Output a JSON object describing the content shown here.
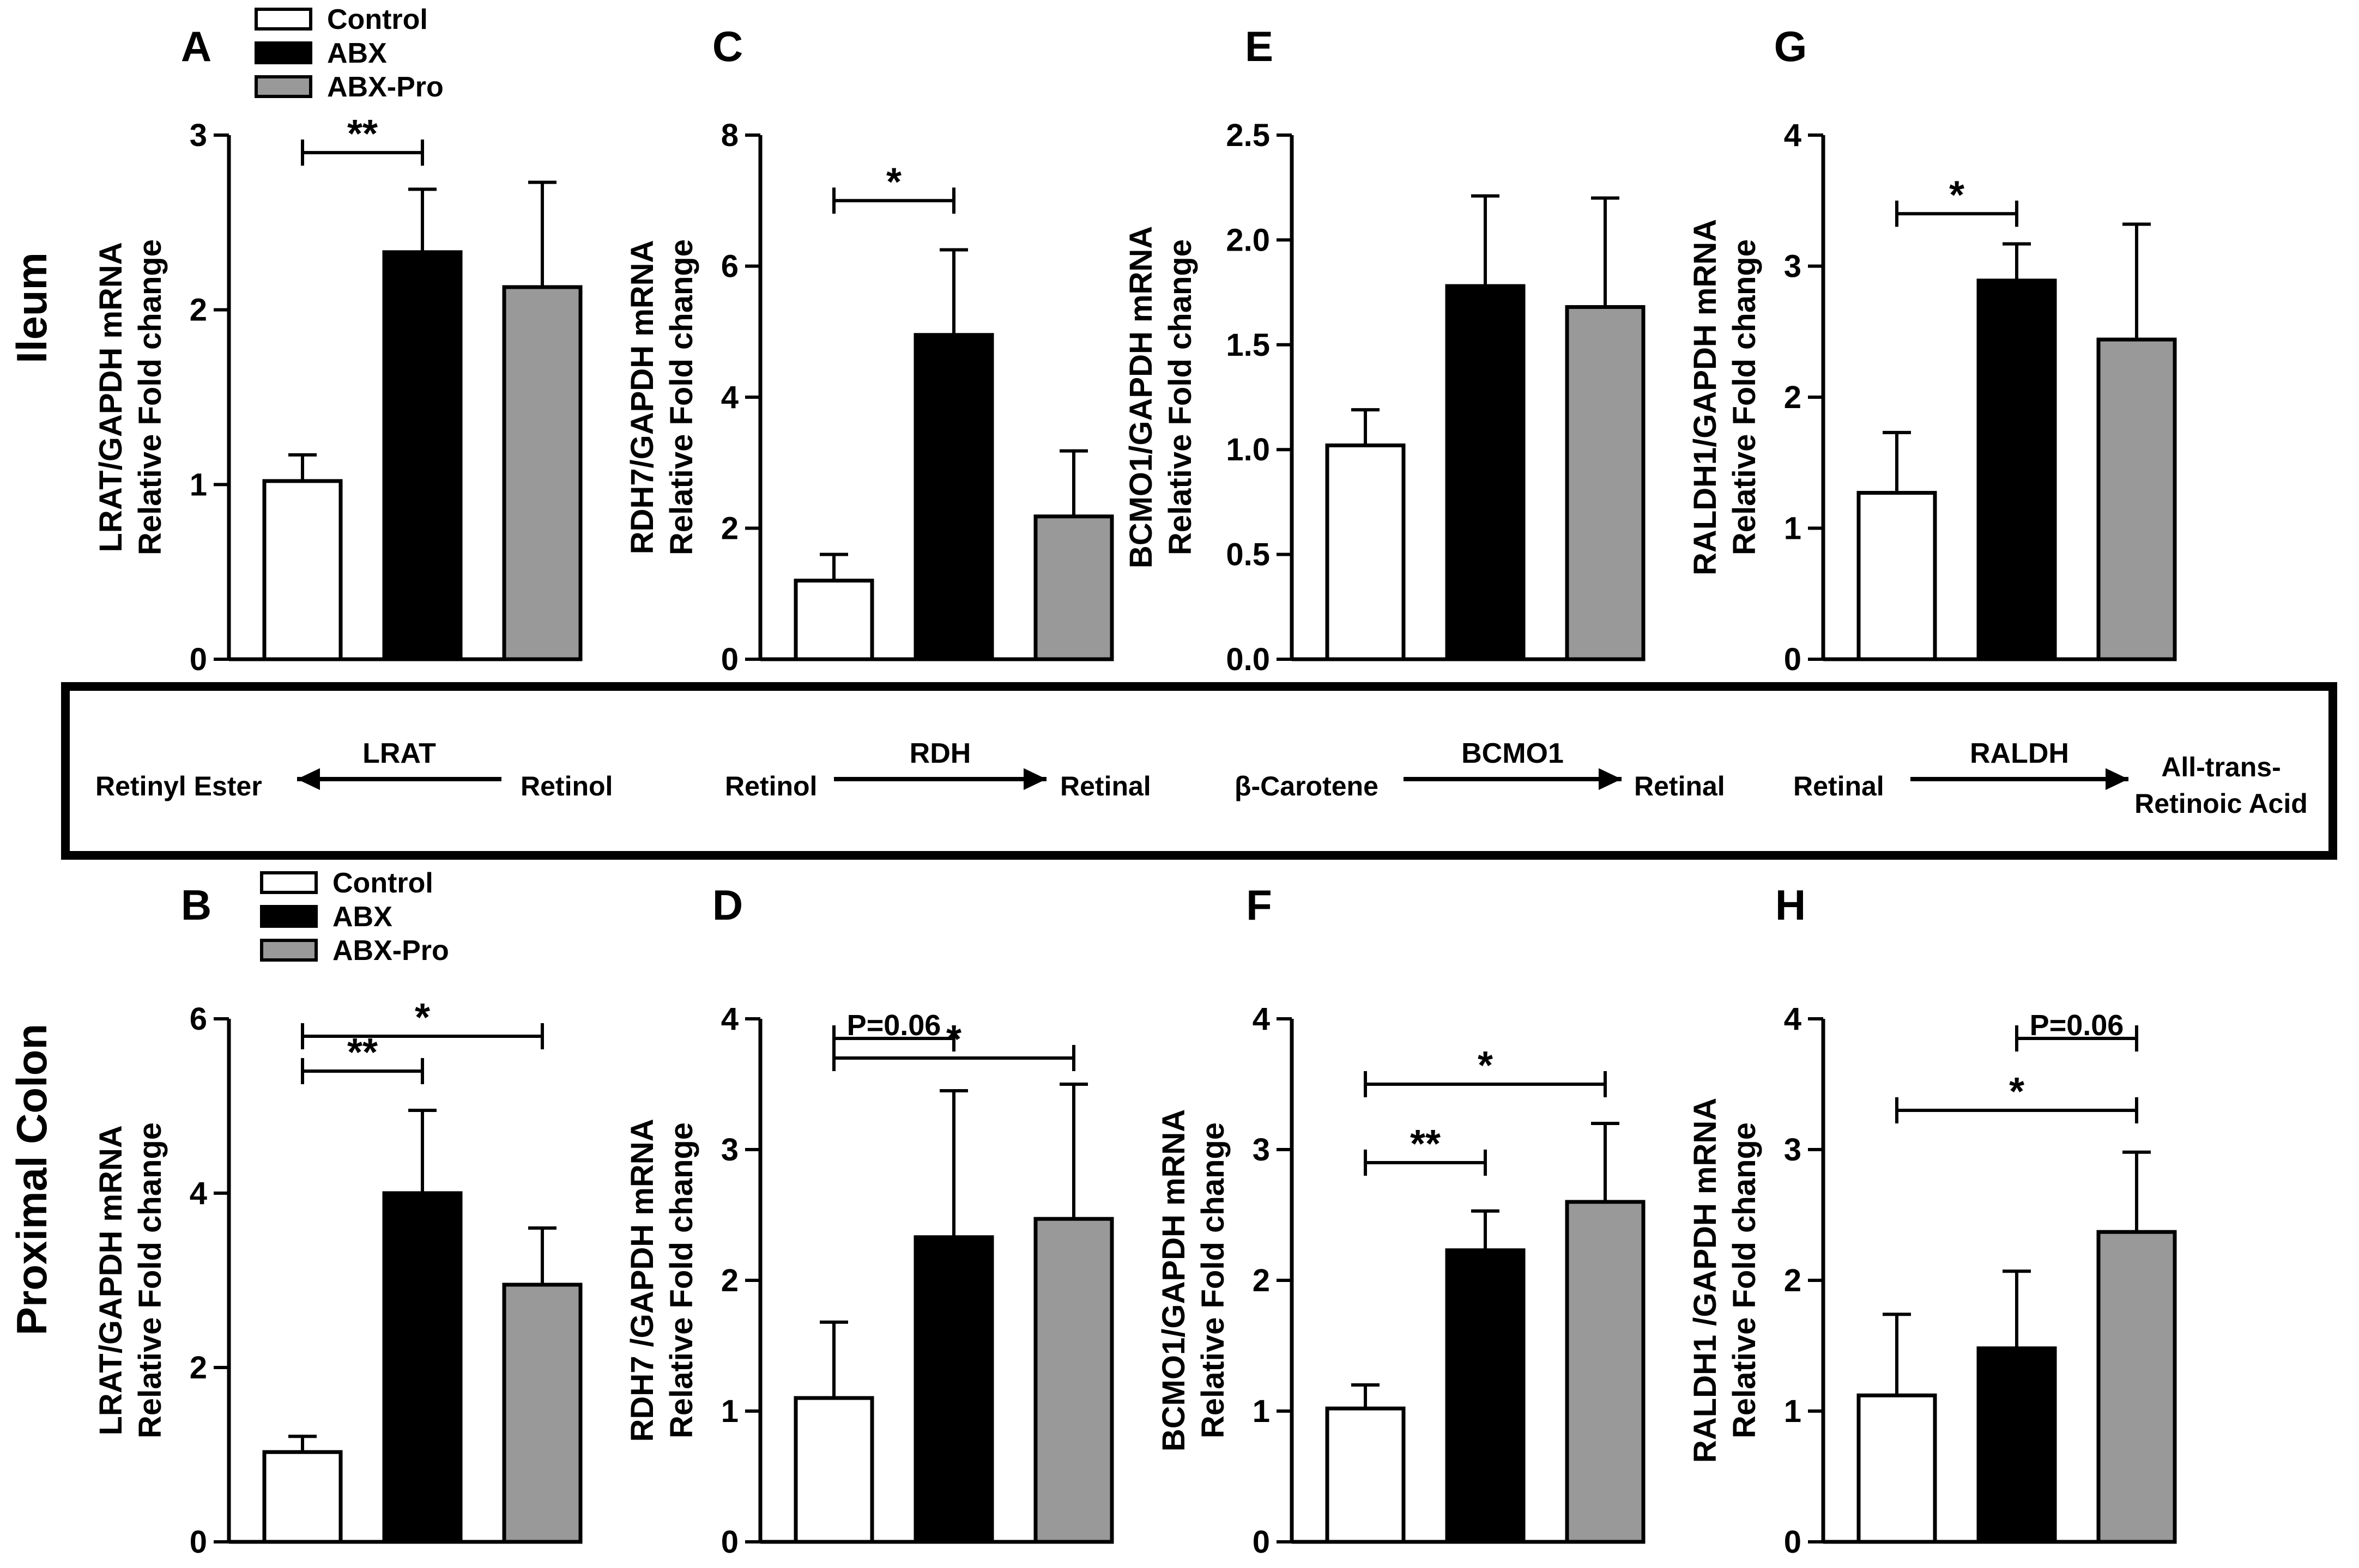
{
  "figure": {
    "row_labels": {
      "top": "Ileum",
      "bottom": "Proximal Colon"
    },
    "groups": [
      "Control",
      "ABX",
      "ABX-Pro"
    ],
    "group_colors": [
      "#ffffff",
      "#000000",
      "#999999"
    ],
    "pathway": [
      {
        "enzyme": "LRAT",
        "substrate": "Retinol",
        "product": "Retinyl Ester",
        "direction": "left"
      },
      {
        "enzyme": "RDH",
        "substrate": "Retinol",
        "product": "Retinal",
        "direction": "right"
      },
      {
        "enzyme": "BCMO1",
        "substrate": "β-Carotene",
        "product": "Retinal",
        "direction": "right"
      },
      {
        "enzyme": "RALDH",
        "substrate": "Retinal",
        "product_lines": [
          "All-trans-",
          "Retinoic Acid"
        ],
        "direction": "right"
      }
    ]
  },
  "chart_data": [
    {
      "panel": "A",
      "type": "bar",
      "row": "Ileum",
      "legend": true,
      "ylabel": [
        "LRAT/GAPDH mRNA",
        "Relative Fold change"
      ],
      "ylim": [
        0,
        3
      ],
      "yticks": [
        "0",
        "1",
        "2",
        "3"
      ],
      "series": [
        {
          "name": "Control",
          "value": 1.02,
          "error": 0.15
        },
        {
          "name": "ABX",
          "value": 2.33,
          "error": 0.36
        },
        {
          "name": "ABX-Pro",
          "value": 2.13,
          "error": 0.6
        }
      ],
      "comparisons": [
        {
          "from": 0,
          "to": 1,
          "y": 2.9,
          "label": "**"
        }
      ]
    },
    {
      "panel": "B",
      "type": "bar",
      "row": "Proximal Colon",
      "legend": true,
      "ylabel": [
        "LRAT/GAPDH mRNA",
        "Relative Fold change"
      ],
      "ylim": [
        0,
        6
      ],
      "yticks": [
        "0",
        "2",
        "4",
        "6"
      ],
      "series": [
        {
          "name": "Control",
          "value": 1.03,
          "error": 0.18
        },
        {
          "name": "ABX",
          "value": 4.0,
          "error": 0.95
        },
        {
          "name": "ABX-Pro",
          "value": 2.95,
          "error": 0.65
        }
      ],
      "comparisons": [
        {
          "from": 0,
          "to": 1,
          "y": 5.4,
          "label": "**"
        },
        {
          "from": 0,
          "to": 2,
          "y": 5.8,
          "label": "*"
        }
      ]
    },
    {
      "panel": "C",
      "type": "bar",
      "row": "Ileum",
      "legend": false,
      "ylabel": [
        "RDH7/GAPDH mRNA",
        "Relative Fold change"
      ],
      "ylim": [
        0,
        8
      ],
      "yticks": [
        "0",
        "2",
        "4",
        "6",
        "8"
      ],
      "series": [
        {
          "name": "Control",
          "value": 1.2,
          "error": 0.4
        },
        {
          "name": "ABX",
          "value": 4.95,
          "error": 1.3
        },
        {
          "name": "ABX-Pro",
          "value": 2.18,
          "error": 1.0
        }
      ],
      "comparisons": [
        {
          "from": 0,
          "to": 1,
          "y": 7.0,
          "label": "*"
        }
      ]
    },
    {
      "panel": "D",
      "type": "bar",
      "row": "Proximal Colon",
      "legend": false,
      "ylabel": [
        "RDH7 /GAPDH mRNA",
        "Relative Fold change"
      ],
      "ylim": [
        0,
        4
      ],
      "yticks": [
        "0",
        "1",
        "2",
        "3",
        "4"
      ],
      "series": [
        {
          "name": "Control",
          "value": 1.1,
          "error": 0.58
        },
        {
          "name": "ABX",
          "value": 2.33,
          "error": 1.12
        },
        {
          "name": "ABX-Pro",
          "value": 2.47,
          "error": 1.03
        }
      ],
      "comparisons": [
        {
          "from": 0,
          "to": 1,
          "y": 3.85,
          "label": "P=0.06"
        },
        {
          "from": 0,
          "to": 2,
          "y": 3.7,
          "label": "*"
        }
      ]
    },
    {
      "panel": "E",
      "type": "bar",
      "row": "Ileum",
      "legend": false,
      "ylabel": [
        "BCMO1/GAPDH mRNA",
        "Relative Fold change"
      ],
      "ylim": [
        0,
        2.5
      ],
      "yticks": [
        "0.0",
        "0.5",
        "1.0",
        "1.5",
        "2.0",
        "2.5"
      ],
      "series": [
        {
          "name": "Control",
          "value": 1.02,
          "error": 0.17
        },
        {
          "name": "ABX",
          "value": 1.78,
          "error": 0.43
        },
        {
          "name": "ABX-Pro",
          "value": 1.68,
          "error": 0.52
        }
      ],
      "comparisons": []
    },
    {
      "panel": "F",
      "type": "bar",
      "row": "Proximal Colon",
      "legend": false,
      "ylabel": [
        "BCMO1/GAPDH mRNA",
        "Relative Fold change"
      ],
      "ylim": [
        0,
        4
      ],
      "yticks": [
        "0",
        "1",
        "2",
        "3",
        "4"
      ],
      "series": [
        {
          "name": "Control",
          "value": 1.02,
          "error": 0.18
        },
        {
          "name": "ABX",
          "value": 2.23,
          "error": 0.3
        },
        {
          "name": "ABX-Pro",
          "value": 2.6,
          "error": 0.6
        }
      ],
      "comparisons": [
        {
          "from": 0,
          "to": 1,
          "y": 2.9,
          "label": "**"
        },
        {
          "from": 0,
          "to": 2,
          "y": 3.5,
          "label": "*"
        }
      ]
    },
    {
      "panel": "G",
      "type": "bar",
      "row": "Ileum",
      "legend": false,
      "ylabel": [
        "RALDH1/GAPDH mRNA",
        "Relative Fold change"
      ],
      "ylim": [
        0,
        4
      ],
      "yticks": [
        "0",
        "1",
        "2",
        "3",
        "4"
      ],
      "series": [
        {
          "name": "Control",
          "value": 1.27,
          "error": 0.46
        },
        {
          "name": "ABX",
          "value": 2.89,
          "error": 0.28
        },
        {
          "name": "ABX-Pro",
          "value": 2.44,
          "error": 0.88
        }
      ],
      "comparisons": [
        {
          "from": 0,
          "to": 1,
          "y": 3.4,
          "label": "*"
        }
      ]
    },
    {
      "panel": "H",
      "type": "bar",
      "row": "Proximal Colon",
      "legend": false,
      "ylabel": [
        "RALDH1 /GAPDH mRNA",
        "Relative Fold change"
      ],
      "ylim": [
        0,
        4
      ],
      "yticks": [
        "0",
        "1",
        "2",
        "3",
        "4"
      ],
      "series": [
        {
          "name": "Control",
          "value": 1.12,
          "error": 0.62
        },
        {
          "name": "ABX",
          "value": 1.48,
          "error": 0.59
        },
        {
          "name": "ABX-Pro",
          "value": 2.37,
          "error": 0.61
        }
      ],
      "comparisons": [
        {
          "from": 1,
          "to": 2,
          "y": 3.85,
          "label": "P=0.06"
        },
        {
          "from": 0,
          "to": 2,
          "y": 3.3,
          "label": "*"
        }
      ]
    }
  ]
}
